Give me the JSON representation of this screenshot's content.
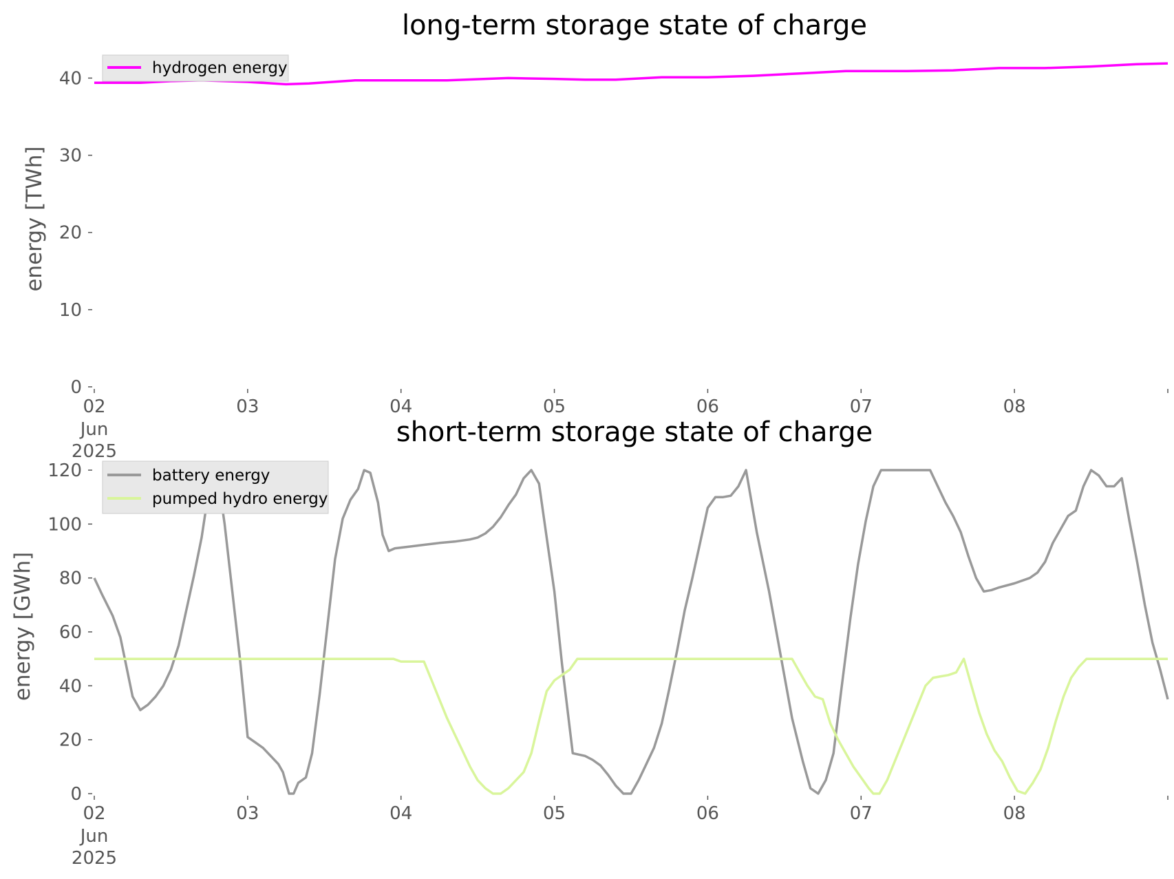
{
  "charts": {
    "top": {
      "title": "long-term storage state of charge",
      "ylabel": "energy [TWh]",
      "yticks": [
        "0",
        "10",
        "20",
        "30",
        "40"
      ],
      "xticks": [
        {
          "day": 0,
          "label": "02",
          "sub1": "Jun",
          "sub2": "2025"
        },
        {
          "day": 1,
          "label": "03"
        },
        {
          "day": 2,
          "label": "04"
        },
        {
          "day": 3,
          "label": "05"
        },
        {
          "day": 4,
          "label": "06"
        },
        {
          "day": 5,
          "label": "07"
        },
        {
          "day": 6,
          "label": "08"
        }
      ],
      "legend": [
        "hydrogen energy"
      ]
    },
    "bottom": {
      "title": "short-term storage state of charge",
      "ylabel": "energy [GWh]",
      "yticks": [
        "0",
        "20",
        "40",
        "60",
        "80",
        "100",
        "120"
      ],
      "xticks": [
        {
          "day": 0,
          "label": "02",
          "sub1": "Jun",
          "sub2": "2025"
        },
        {
          "day": 1,
          "label": "03"
        },
        {
          "day": 2,
          "label": "04"
        },
        {
          "day": 3,
          "label": "05"
        },
        {
          "day": 4,
          "label": "06"
        },
        {
          "day": 5,
          "label": "07"
        },
        {
          "day": 6,
          "label": "08"
        }
      ],
      "legend": [
        "battery energy",
        "pumped hydro energy"
      ]
    }
  },
  "chart_data": [
    {
      "type": "line",
      "title": "long-term storage state of charge",
      "xlabel": "",
      "ylabel": "energy [TWh]",
      "x_unit": "days from 2025-06-02 00:00",
      "xlim": [
        0,
        7
      ],
      "ylim": [
        0,
        42
      ],
      "grid": false,
      "legend_position": "top-left",
      "series": [
        {
          "name": "hydrogen energy",
          "color": "#ff00ff",
          "points": [
            [
              0,
              39.4
            ],
            [
              0.3,
              39.4
            ],
            [
              0.5,
              39.6
            ],
            [
              0.7,
              39.7
            ],
            [
              1.0,
              39.5
            ],
            [
              1.25,
              39.2
            ],
            [
              1.4,
              39.3
            ],
            [
              1.7,
              39.7
            ],
            [
              2.0,
              39.7
            ],
            [
              2.3,
              39.7
            ],
            [
              2.7,
              40.0
            ],
            [
              3.0,
              39.9
            ],
            [
              3.2,
              39.8
            ],
            [
              3.4,
              39.8
            ],
            [
              3.7,
              40.1
            ],
            [
              4.0,
              40.1
            ],
            [
              4.3,
              40.3
            ],
            [
              4.6,
              40.6
            ],
            [
              4.9,
              40.9
            ],
            [
              5.3,
              40.9
            ],
            [
              5.6,
              41.0
            ],
            [
              5.9,
              41.3
            ],
            [
              6.2,
              41.3
            ],
            [
              6.5,
              41.5
            ],
            [
              6.8,
              41.8
            ],
            [
              7.0,
              41.9
            ]
          ]
        }
      ]
    },
    {
      "type": "line",
      "title": "short-term storage state of charge",
      "xlabel": "",
      "ylabel": "energy [GWh]",
      "x_unit": "days from 2025-06-02 00:00",
      "xlim": [
        0,
        7
      ],
      "ylim": [
        0,
        120
      ],
      "grid": false,
      "legend_position": "top-left",
      "series": [
        {
          "name": "battery energy",
          "color": "#999999",
          "points": [
            [
              0,
              80
            ],
            [
              0.05,
              74
            ],
            [
              0.12,
              66
            ],
            [
              0.17,
              58
            ],
            [
              0.25,
              36
            ],
            [
              0.3,
              31
            ],
            [
              0.35,
              33
            ],
            [
              0.4,
              36
            ],
            [
              0.45,
              40
            ],
            [
              0.5,
              46
            ],
            [
              0.55,
              55
            ],
            [
              0.6,
              68
            ],
            [
              0.65,
              81
            ],
            [
              0.7,
              95
            ],
            [
              0.74,
              110
            ],
            [
              0.77,
              120
            ],
            [
              0.8,
              120
            ],
            [
              0.85,
              100
            ],
            [
              0.9,
              75
            ],
            [
              0.95,
              50
            ],
            [
              1.0,
              21
            ],
            [
              1.05,
              19
            ],
            [
              1.1,
              17
            ],
            [
              1.15,
              14
            ],
            [
              1.2,
              11
            ],
            [
              1.23,
              8
            ],
            [
              1.27,
              0
            ],
            [
              1.3,
              0
            ],
            [
              1.33,
              4
            ],
            [
              1.38,
              6
            ],
            [
              1.42,
              15
            ],
            [
              1.47,
              37
            ],
            [
              1.52,
              62
            ],
            [
              1.57,
              87
            ],
            [
              1.62,
              102
            ],
            [
              1.67,
              109
            ],
            [
              1.72,
              113
            ],
            [
              1.76,
              120
            ],
            [
              1.8,
              119
            ],
            [
              1.85,
              108
            ],
            [
              1.88,
              96
            ],
            [
              1.92,
              90
            ],
            [
              1.96,
              91
            ],
            [
              2.05,
              91.6
            ],
            [
              2.15,
              92.3
            ],
            [
              2.25,
              93
            ],
            [
              2.35,
              93.5
            ],
            [
              2.45,
              94.3
            ],
            [
              2.5,
              95
            ],
            [
              2.55,
              96.5
            ],
            [
              2.6,
              99
            ],
            [
              2.65,
              102.5
            ],
            [
              2.7,
              107
            ],
            [
              2.75,
              111
            ],
            [
              2.8,
              117
            ],
            [
              2.85,
              120
            ],
            [
              2.9,
              115
            ],
            [
              2.95,
              95
            ],
            [
              3.0,
              75
            ],
            [
              3.05,
              48
            ],
            [
              3.12,
              15
            ],
            [
              3.2,
              14
            ],
            [
              3.25,
              12.5
            ],
            [
              3.3,
              10.5
            ],
            [
              3.35,
              7
            ],
            [
              3.4,
              3
            ],
            [
              3.45,
              0
            ],
            [
              3.5,
              0
            ],
            [
              3.55,
              5
            ],
            [
              3.6,
              11
            ],
            [
              3.65,
              17
            ],
            [
              3.7,
              26
            ],
            [
              3.75,
              39
            ],
            [
              3.8,
              53
            ],
            [
              3.85,
              68
            ],
            [
              3.9,
              80
            ],
            [
              3.95,
              93
            ],
            [
              4.0,
              106
            ],
            [
              4.05,
              110
            ],
            [
              4.1,
              110
            ],
            [
              4.15,
              110.5
            ],
            [
              4.2,
              114
            ],
            [
              4.25,
              120
            ],
            [
              4.32,
              97
            ],
            [
              4.4,
              75
            ],
            [
              4.47,
              53
            ],
            [
              4.55,
              28
            ],
            [
              4.62,
              12
            ],
            [
              4.67,
              2
            ],
            [
              4.72,
              0
            ],
            [
              4.77,
              5
            ],
            [
              4.82,
              15
            ],
            [
              4.87,
              38
            ],
            [
              4.93,
              65
            ],
            [
              4.98,
              85
            ],
            [
              5.03,
              101
            ],
            [
              5.08,
              114
            ],
            [
              5.13,
              120
            ],
            [
              5.3,
              120
            ],
            [
              5.45,
              120
            ],
            [
              5.5,
              114
            ],
            [
              5.55,
              108
            ],
            [
              5.6,
              103
            ],
            [
              5.65,
              97
            ],
            [
              5.7,
              88
            ],
            [
              5.75,
              80
            ],
            [
              5.8,
              75
            ],
            [
              5.85,
              75.5
            ],
            [
              5.9,
              76.5
            ],
            [
              6.0,
              78
            ],
            [
              6.1,
              80
            ],
            [
              6.15,
              82
            ],
            [
              6.2,
              86
            ],
            [
              6.25,
              93
            ],
            [
              6.3,
              98
            ],
            [
              6.35,
              103
            ],
            [
              6.4,
              105
            ],
            [
              6.45,
              114
            ],
            [
              6.5,
              120
            ],
            [
              6.55,
              118
            ],
            [
              6.6,
              114
            ],
            [
              6.65,
              114
            ],
            [
              6.7,
              117
            ],
            [
              6.75,
              101
            ],
            [
              6.8,
              86
            ],
            [
              6.85,
              70
            ],
            [
              6.9,
              56
            ],
            [
              6.95,
              46
            ],
            [
              7.0,
              35
            ]
          ]
        },
        {
          "name": "pumped hydro energy",
          "color": "#d9f59b",
          "points": [
            [
              0,
              50
            ],
            [
              0.5,
              50
            ],
            [
              1.0,
              50
            ],
            [
              1.5,
              50
            ],
            [
              1.95,
              50
            ],
            [
              2.0,
              49
            ],
            [
              2.1,
              49
            ],
            [
              2.15,
              49
            ],
            [
              2.2,
              42
            ],
            [
              2.25,
              35
            ],
            [
              2.3,
              28
            ],
            [
              2.35,
              22
            ],
            [
              2.4,
              16
            ],
            [
              2.45,
              10
            ],
            [
              2.5,
              5
            ],
            [
              2.55,
              2
            ],
            [
              2.6,
              0
            ],
            [
              2.65,
              0
            ],
            [
              2.7,
              2
            ],
            [
              2.75,
              5
            ],
            [
              2.8,
              8
            ],
            [
              2.85,
              15
            ],
            [
              2.9,
              27
            ],
            [
              2.95,
              38
            ],
            [
              3.0,
              42
            ],
            [
              3.05,
              44
            ],
            [
              3.1,
              46
            ],
            [
              3.15,
              50
            ],
            [
              3.5,
              50
            ],
            [
              4.0,
              50
            ],
            [
              4.5,
              50
            ],
            [
              4.55,
              50
            ],
            [
              4.6,
              45
            ],
            [
              4.65,
              40
            ],
            [
              4.7,
              36
            ],
            [
              4.75,
              35
            ],
            [
              4.8,
              26
            ],
            [
              4.85,
              20
            ],
            [
              4.9,
              15
            ],
            [
              4.95,
              10
            ],
            [
              5.0,
              6
            ],
            [
              5.05,
              2
            ],
            [
              5.08,
              0
            ],
            [
              5.12,
              0
            ],
            [
              5.17,
              5
            ],
            [
              5.22,
              12
            ],
            [
              5.27,
              19
            ],
            [
              5.32,
              26
            ],
            [
              5.37,
              33
            ],
            [
              5.42,
              40
            ],
            [
              5.47,
              43
            ],
            [
              5.52,
              43.5
            ],
            [
              5.57,
              44
            ],
            [
              5.62,
              45
            ],
            [
              5.67,
              50
            ],
            [
              5.72,
              40
            ],
            [
              5.77,
              30
            ],
            [
              5.82,
              22
            ],
            [
              5.87,
              16
            ],
            [
              5.92,
              12
            ],
            [
              5.97,
              6
            ],
            [
              6.02,
              1
            ],
            [
              6.07,
              0
            ],
            [
              6.12,
              4
            ],
            [
              6.17,
              9
            ],
            [
              6.22,
              17
            ],
            [
              6.27,
              27
            ],
            [
              6.32,
              36
            ],
            [
              6.37,
              43
            ],
            [
              6.42,
              47
            ],
            [
              6.47,
              50
            ],
            [
              6.6,
              50
            ],
            [
              6.7,
              50
            ],
            [
              6.8,
              50
            ],
            [
              6.9,
              50
            ],
            [
              7.0,
              50
            ]
          ]
        }
      ]
    }
  ]
}
